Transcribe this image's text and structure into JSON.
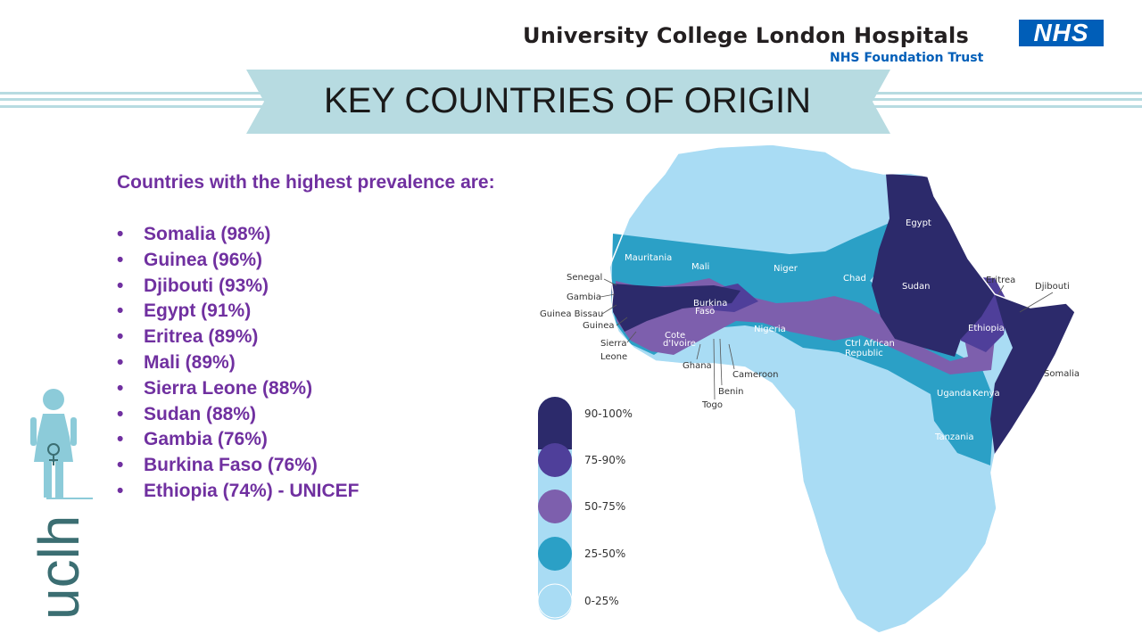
{
  "header": {
    "organization": "University College London Hospitals",
    "trust": "NHS Foundation Trust",
    "nhs_logo": "NHS"
  },
  "slide": {
    "title": "KEY COUNTRIES OF ORIGIN",
    "intro": "Countries with the highest prevalence are:",
    "items": [
      "Somalia (98%)",
      "Guinea (96%)",
      "Djibouti (93%)",
      "Egypt (91%)",
      "Eritrea (89%)",
      "Mali (89%)",
      "Sierra Leone (88%)",
      "Sudan (88%)",
      "Gambia (76%)",
      "Burkina Faso (76%)",
      "Ethiopia (74%) - UNICEF"
    ],
    "bullet": "•"
  },
  "side_logo": {
    "text": "uclh",
    "icon": "woman-symbol-icon"
  },
  "map": {
    "colors": {
      "0-25": "#a9dcf4",
      "25-50": "#2ba0c6",
      "50-75": "#7d5fad",
      "75-90": "#4f3f9a",
      "90-100": "#2c2a6b"
    },
    "legend": [
      "90-100%",
      "75-90%",
      "50-75%",
      "25-50%",
      "0-25%"
    ],
    "labels": {
      "mauritania": "Mauritania",
      "mali": "Mali",
      "niger": "Niger",
      "chad": "Chad",
      "egypt": "Egypt",
      "sudan": "Sudan",
      "eritrea": "Eritrea",
      "djibouti": "Djibouti",
      "ethiopia": "Ethiopia",
      "somalia": "Somalia",
      "kenya": "Kenya",
      "uganda": "Uganda",
      "tanzania": "Tanzania",
      "nigeria": "Nigeria",
      "car_1": "Ctrl African",
      "car_2": "Republic",
      "cameroon": "Cameroon",
      "benin": "Benin",
      "togo": "Togo",
      "ghana": "Ghana",
      "cote_1": "Cote",
      "cote_2": "d'Ivoire",
      "burkina_1": "Burkina",
      "burkina_2": "Faso",
      "senegal": "Senegal",
      "gambia": "Gambia",
      "guinea_bissau": "Guinea Bissau",
      "guinea": "Guinea",
      "sierra_1": "Sierra",
      "sierra_2": "Leone"
    }
  }
}
